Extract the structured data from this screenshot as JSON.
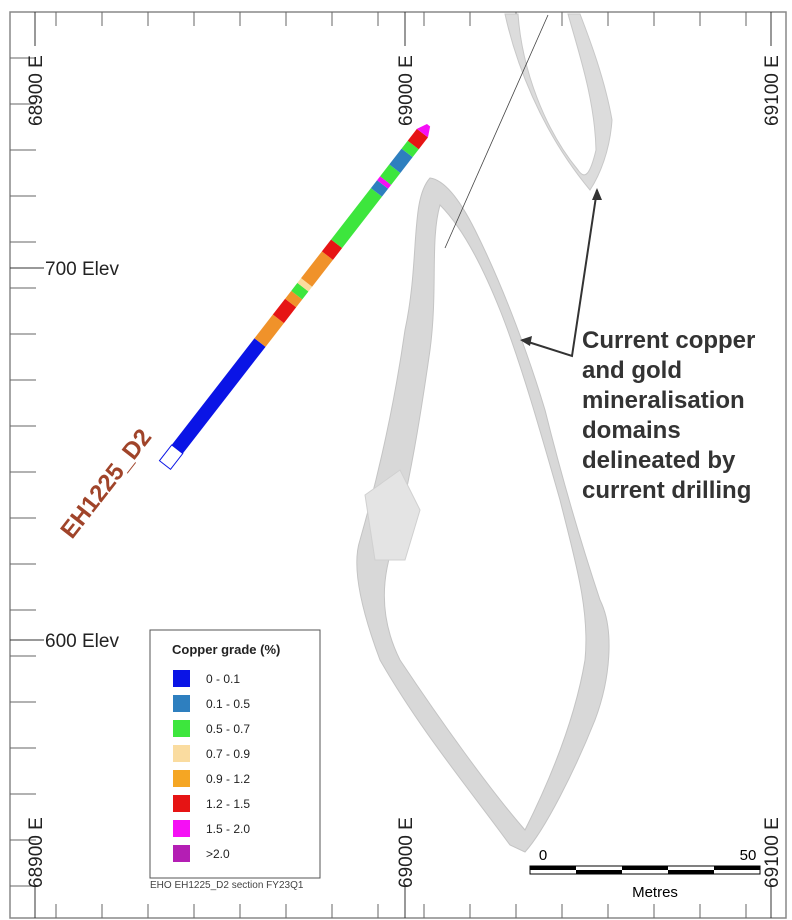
{
  "grid": {
    "top_labels": [
      "68900 E",
      "69000 E",
      "69100 E"
    ],
    "bottom_labels": [
      "68900 E",
      "69000 E",
      "69100 E"
    ],
    "elev_labels": [
      "700 Elev",
      "600 Elev"
    ]
  },
  "drillhole": {
    "label": "EH1225_D2"
  },
  "annotation": {
    "lines": [
      "Current copper",
      "and gold",
      "mineralisation",
      "domains",
      "delineated by",
      "current drilling"
    ]
  },
  "legend": {
    "title": "Copper grade (%)",
    "items": [
      {
        "label": "0 - 0.1",
        "color": "#0a14e6"
      },
      {
        "label": "0.1 - 0.5",
        "color": "#2e7fbf"
      },
      {
        "label": "0.5 - 0.7",
        "color": "#3de63d"
      },
      {
        "label": "0.7 - 0.9",
        "color": "#fadca0"
      },
      {
        "label": "0.9 - 1.2",
        "color": "#f5a623"
      },
      {
        "label": "1.2 - 1.5",
        "color": "#e61414"
      },
      {
        "label": "1.5 - 2.0",
        "color": "#f50ff5"
      },
      {
        "label": ">2.0",
        "color": "#b41eb4"
      }
    ]
  },
  "caption": "EHO EH1225_D2 section FY23Q1",
  "scale_bar": {
    "start_label": "0",
    "end_label": "50",
    "unit": "Metres"
  }
}
